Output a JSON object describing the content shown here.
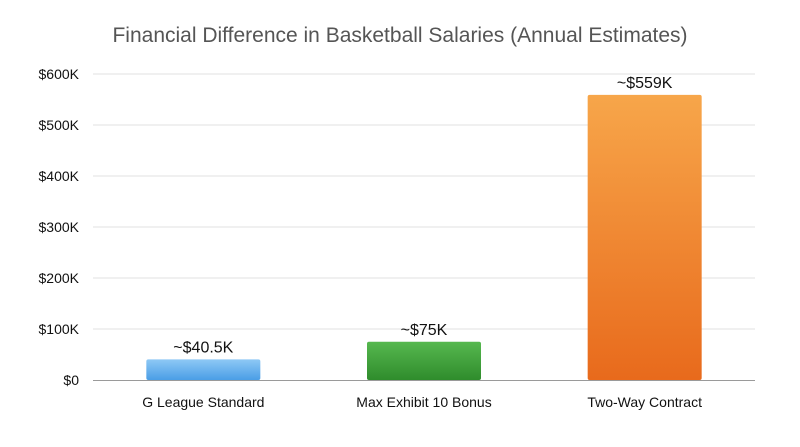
{
  "chart_data": {
    "type": "bar",
    "title": "Financial Difference in Basketball Salaries (Annual Estimates)",
    "xlabel": "",
    "ylabel": "",
    "categories": [
      "G League Standard",
      "Max Exhibit 10 Bonus",
      "Two-Way Contract"
    ],
    "values": [
      40500,
      75000,
      559000
    ],
    "data_labels": [
      "~$40.5K",
      "~$75K",
      "~$559K"
    ],
    "ylim": [
      0,
      600000
    ],
    "yticks": [
      0,
      100000,
      200000,
      300000,
      400000,
      500000,
      600000
    ],
    "ytick_labels": [
      "$0",
      "$100K",
      "$200K",
      "$300K",
      "$400K",
      "$500K",
      "$600K"
    ],
    "grid": true,
    "legend": "none",
    "bar_colors": [
      {
        "top": "#8ec8f5",
        "bottom": "#4a9ee6"
      },
      {
        "top": "#56b84f",
        "bottom": "#2f8c2c"
      },
      {
        "top": "#f7a64a",
        "bottom": "#e86a1c"
      }
    ]
  }
}
